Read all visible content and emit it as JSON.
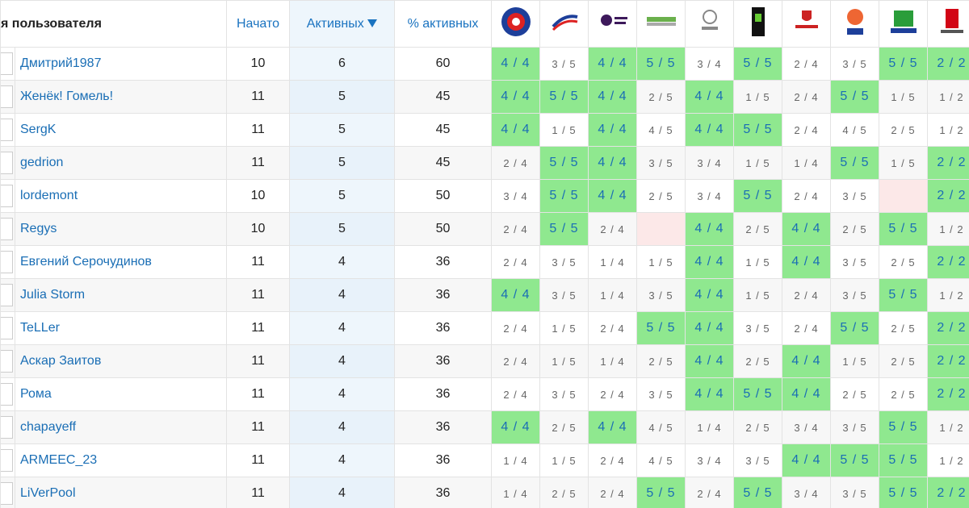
{
  "header": {
    "columns": [
      "я пользователя",
      "Начато",
      "Активных",
      "% активных"
    ]
  },
  "table": {
    "rows": [
      {
        "name": "Дмитрий1987",
        "started": 10,
        "active": 6,
        "percent": 60,
        "cells": [
          "4 / 4",
          "3 / 5",
          "4 / 4",
          "5 / 5",
          "3 / 4",
          "5 / 5",
          "2 / 4",
          "3 / 5",
          "5 / 5",
          "2 / 2"
        ]
      },
      {
        "name": "Женёк! Гомель!",
        "started": 11,
        "active": 5,
        "percent": 45,
        "cells": [
          "4 / 4",
          "5 / 5",
          "4 / 4",
          "2 / 5",
          "4 / 4",
          "1 / 5",
          "2 / 4",
          "5 / 5",
          "1 / 5",
          "1 / 2"
        ]
      },
      {
        "name": "SergK",
        "started": 11,
        "active": 5,
        "percent": 45,
        "cells": [
          "4 / 4",
          "1 / 5",
          "4 / 4",
          "4 / 5",
          "4 / 4",
          "5 / 5",
          "2 / 4",
          "4 / 5",
          "2 / 5",
          "1 / 2"
        ]
      },
      {
        "name": "gedrion",
        "started": 11,
        "active": 5,
        "percent": 45,
        "cells": [
          "2 / 4",
          "5 / 5",
          "4 / 4",
          "3 / 5",
          "3 / 4",
          "1 / 5",
          "1 / 4",
          "5 / 5",
          "1 / 5",
          "2 / 2"
        ]
      },
      {
        "name": "lordemont",
        "started": 10,
        "active": 5,
        "percent": 50,
        "cells": [
          "3 / 4",
          "5 / 5",
          "4 / 4",
          "2 / 5",
          "3 / 4",
          "5 / 5",
          "2 / 4",
          "3 / 5",
          null,
          "2 / 2"
        ]
      },
      {
        "name": "Regys",
        "started": 10,
        "active": 5,
        "percent": 50,
        "cells": [
          "2 / 4",
          "5 / 5",
          "2 / 4",
          null,
          "4 / 4",
          "2 / 5",
          "4 / 4",
          "2 / 5",
          "5 / 5",
          "1 / 2"
        ]
      },
      {
        "name": "Евгений Серочудинов",
        "started": 11,
        "active": 4,
        "percent": 36,
        "cells": [
          "2 / 4",
          "3 / 5",
          "1 / 4",
          "1 / 5",
          "4 / 4",
          "1 / 5",
          "4 / 4",
          "3 / 5",
          "2 / 5",
          "2 / 2"
        ]
      },
      {
        "name": "Julia Storm",
        "started": 11,
        "active": 4,
        "percent": 36,
        "cells": [
          "4 / 4",
          "3 / 5",
          "1 / 4",
          "3 / 5",
          "4 / 4",
          "1 / 5",
          "2 / 4",
          "3 / 5",
          "5 / 5",
          "1 / 2"
        ]
      },
      {
        "name": "TeLLer",
        "started": 11,
        "active": 4,
        "percent": 36,
        "cells": [
          "2 / 4",
          "1 / 5",
          "2 / 4",
          "5 / 5",
          "4 / 4",
          "3 / 5",
          "2 / 4",
          "5 / 5",
          "2 / 5",
          "2 / 2"
        ]
      },
      {
        "name": "Аскар Заитов",
        "started": 11,
        "active": 4,
        "percent": 36,
        "cells": [
          "2 / 4",
          "1 / 5",
          "1 / 4",
          "2 / 5",
          "4 / 4",
          "2 / 5",
          "4 / 4",
          "1 / 5",
          "2 / 5",
          "2 / 2"
        ]
      },
      {
        "name": "Рома",
        "started": 11,
        "active": 4,
        "percent": 36,
        "cells": [
          "2 / 4",
          "3 / 5",
          "2 / 4",
          "3 / 5",
          "4 / 4",
          "5 / 5",
          "4 / 4",
          "2 / 5",
          "2 / 5",
          "2 / 2"
        ]
      },
      {
        "name": "chapayeff",
        "started": 11,
        "active": 4,
        "percent": 36,
        "cells": [
          "4 / 4",
          "2 / 5",
          "4 / 4",
          "4 / 5",
          "1 / 4",
          "2 / 5",
          "3 / 4",
          "3 / 5",
          "5 / 5",
          "1 / 2"
        ]
      },
      {
        "name": "ARMEEC_23",
        "started": 11,
        "active": 4,
        "percent": 36,
        "cells": [
          "1 / 4",
          "1 / 5",
          "2 / 4",
          "4 / 5",
          "3 / 4",
          "3 / 5",
          "4 / 4",
          "5 / 5",
          "5 / 5",
          "1 / 2"
        ]
      },
      {
        "name": "LiVerPool",
        "started": 11,
        "active": 4,
        "percent": 36,
        "cells": [
          "1 / 4",
          "2 / 5",
          "2 / 4",
          "5 / 5",
          "2 / 4",
          "5 / 5",
          "3 / 4",
          "3 / 5",
          "5 / 5",
          "2 / 2"
        ]
      }
    ]
  }
}
